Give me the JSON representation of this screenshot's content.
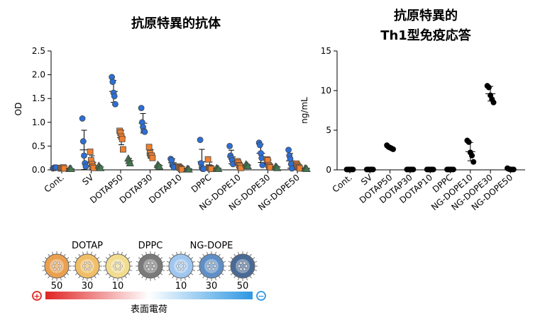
{
  "colors": {
    "blue": "#2c6fd6",
    "orange": "#ee8030",
    "green": "#3f7a4d",
    "black": "#000000"
  },
  "chart_data": [
    {
      "type": "scatter",
      "title": "抗原特異的抗体",
      "ylabel": "OD",
      "ylim": [
        0,
        2.5
      ],
      "yticks": [
        "0.0",
        "0.5",
        "1.0",
        "1.5",
        "2.0",
        "2.5"
      ],
      "categories": [
        "Cont.",
        "SV",
        "DOTAP50",
        "DOTAP30",
        "DOTAP10",
        "DPPC",
        "NG-DOPE10",
        "NG-DOPE30",
        "NG-DOPE50"
      ],
      "series": [
        {
          "marker": "circle",
          "color": "#2c6fd6",
          "mean": [
            0.04,
            0.42,
            1.65,
            0.98,
            0.15,
            0.17,
            0.27,
            0.35,
            0.19
          ],
          "values": [
            [
              0.03,
              0.04,
              0.05,
              0.04,
              0.05
            ],
            [
              1.08,
              0.6,
              0.3,
              0.14,
              0.07
            ],
            [
              1.95,
              1.85,
              1.62,
              1.55,
              1.38
            ],
            [
              1.3,
              1.0,
              0.9,
              0.82,
              0.8
            ],
            [
              0.23,
              0.2,
              0.1,
              0.07,
              0.05
            ],
            [
              0.63,
              0.14,
              0.05,
              0.02,
              0.02
            ],
            [
              0.5,
              0.3,
              0.25,
              0.2,
              0.12
            ],
            [
              0.57,
              0.52,
              0.35,
              0.25,
              0.1
            ],
            [
              0.42,
              0.3,
              0.23,
              0.12,
              0.03
            ]
          ]
        },
        {
          "marker": "square",
          "color": "#ee8030",
          "mean": [
            0.04,
            0.16,
            0.68,
            0.34,
            0.04,
            0.08,
            0.11,
            0.13,
            0.07
          ],
          "values": [
            [
              0.03,
              0.04,
              0.04,
              0.05,
              0.03
            ],
            [
              0.38,
              0.2,
              0.12,
              0.07,
              0.04
            ],
            [
              0.82,
              0.78,
              0.7,
              0.65,
              0.43
            ],
            [
              0.48,
              0.35,
              0.3,
              0.3,
              0.25
            ],
            [
              0.07,
              0.05,
              0.04,
              0.02,
              0.01
            ],
            [
              0.22,
              0.05,
              0.04,
              0.03,
              0.02
            ],
            [
              0.18,
              0.15,
              0.1,
              0.08,
              0.04
            ],
            [
              0.22,
              0.2,
              0.1,
              0.07,
              0.05
            ],
            [
              0.13,
              0.1,
              0.07,
              0.05,
              0.03
            ]
          ]
        },
        {
          "marker": "triangle",
          "color": "#3f7a4d",
          "mean": [
            0.02,
            0.06,
            0.19,
            0.09,
            0.02,
            0.03,
            0.1,
            0.06,
            0.03
          ],
          "values": [
            [
              0.02,
              0.03,
              0.02
            ],
            [
              0.09,
              0.05,
              0.04
            ],
            [
              0.24,
              0.19,
              0.14
            ],
            [
              0.11,
              0.09,
              0.07
            ],
            [
              0.02,
              0.02,
              0.01
            ],
            [
              0.04,
              0.02,
              0.02
            ],
            [
              0.12,
              0.1,
              0.08
            ],
            [
              0.07,
              0.06,
              0.04
            ],
            [
              0.03,
              0.03,
              0.02
            ]
          ]
        }
      ]
    },
    {
      "type": "scatter",
      "title": "抗原特異的\nTh1型免疫応答",
      "title_lines": [
        "抗原特異的",
        "Th1型免疫応答"
      ],
      "ylabel": "ng/mL",
      "ylim": [
        0,
        15
      ],
      "yticks": [
        "0",
        "5",
        "10",
        "15"
      ],
      "categories": [
        "Cont.",
        "SV",
        "DOTAP50",
        "DOTAP30",
        "DOTAP10",
        "DPPC",
        "NG-DOPE10",
        "NG-DOPE30",
        "NG-DOPE50"
      ],
      "series": [
        {
          "marker": "circle",
          "color": "#000000",
          "mean": [
            0.05,
            0.05,
            2.8,
            0.05,
            0.05,
            0.05,
            2.3,
            9.6,
            0.1
          ],
          "values": [
            [
              0.05,
              0.05,
              0.05,
              0.05,
              0.05
            ],
            [
              0.05,
              0.05,
              0.05,
              0.05,
              0.05
            ],
            [
              3.1,
              2.9,
              2.8,
              2.7,
              2.6
            ],
            [
              0.05,
              0.05,
              0.05,
              0.05,
              0.05
            ],
            [
              0.05,
              0.05,
              0.05,
              0.05,
              0.05
            ],
            [
              0.05,
              0.05,
              0.05,
              0.05,
              0.05
            ],
            [
              3.7,
              3.5,
              2.2,
              1.8,
              1.0
            ],
            [
              10.6,
              10.4,
              9.4,
              8.9,
              8.5
            ],
            [
              0.2,
              0.1,
              0.05,
              0.05,
              0.05
            ]
          ]
        }
      ]
    }
  ],
  "legend": {
    "groups": [
      "DOTAP",
      "DPPC",
      "NG-DOPE"
    ],
    "particle_labels": [
      "50",
      "30",
      "10",
      "10",
      "30",
      "50"
    ],
    "particle_colors": [
      "#e9a050",
      "#efbe66",
      "#f2dc90",
      "#7a7a7a",
      "#9fc6ee",
      "#5f8fc6",
      "#4a6a96"
    ],
    "positive_sign": "+",
    "negative_sign": "−",
    "bar_label": "表面電荷",
    "bar_colors": [
      "#e02424",
      "#ffffff",
      "#2f97e2"
    ]
  }
}
